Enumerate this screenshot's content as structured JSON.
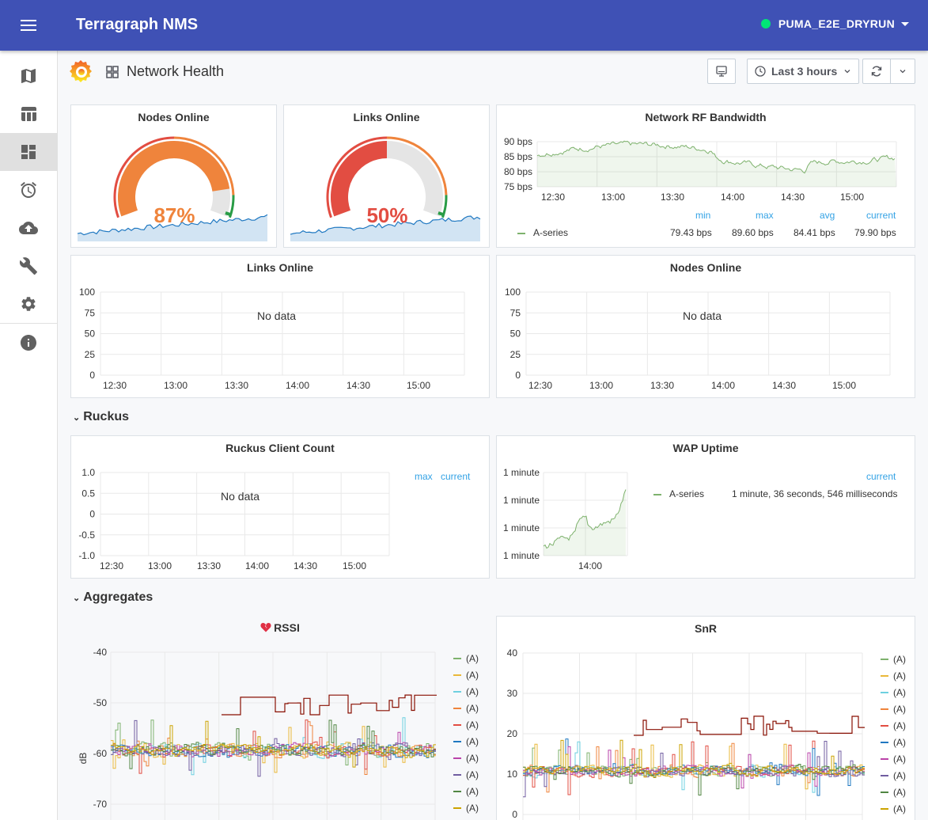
{
  "app": {
    "title": "Terragraph NMS",
    "network_name": "PUMA_E2E_DRYRUN",
    "status_color": "#00e676",
    "accent": "#3f51b5"
  },
  "sidenav": {
    "items": [
      {
        "icon": "map-icon"
      },
      {
        "icon": "table-icon"
      },
      {
        "icon": "dashboard-icon",
        "active": true
      },
      {
        "icon": "alarm-icon"
      },
      {
        "icon": "cloud-upload-icon"
      },
      {
        "icon": "wrench-icon"
      },
      {
        "icon": "gear-icon"
      },
      {
        "icon": "info-icon"
      }
    ]
  },
  "dashboard": {
    "title": "Network Health",
    "time_range": "Last 3 hours"
  },
  "panels": {
    "nodes_online_gauge": {
      "title": "Nodes Online",
      "value": "87%",
      "value_color": "#ef843c",
      "fraction": 0.87
    },
    "links_online_gauge": {
      "title": "Links Online",
      "value": "50%",
      "value_color": "#e24d42",
      "fraction": 0.5
    },
    "rf_bandwidth": {
      "title": "Network RF Bandwidth",
      "y_ticks": [
        "90 bps",
        "85 bps",
        "80 bps",
        "75 bps"
      ],
      "x_ticks": [
        "12:30",
        "13:00",
        "13:30",
        "14:00",
        "14:30",
        "15:00"
      ],
      "legend_headers": [
        "min",
        "max",
        "avg",
        "current"
      ],
      "series": {
        "name": "A-series",
        "min": "79.43 bps",
        "max": "89.60 bps",
        "avg": "84.41 bps",
        "current": "79.90 bps"
      }
    },
    "links_online_graph": {
      "title": "Links Online",
      "no_data": "No data",
      "y_ticks": [
        "100",
        "75",
        "50",
        "25",
        "0"
      ],
      "x_ticks": [
        "12:30",
        "13:00",
        "13:30",
        "14:00",
        "14:30",
        "15:00"
      ]
    },
    "nodes_online_graph": {
      "title": "Nodes Online",
      "no_data": "No data",
      "y_ticks": [
        "100",
        "75",
        "50",
        "25",
        "0"
      ],
      "x_ticks": [
        "12:30",
        "13:00",
        "13:30",
        "14:00",
        "14:30",
        "15:00"
      ]
    },
    "ruckus_client_count": {
      "title": "Ruckus Client Count",
      "no_data": "No data",
      "y_ticks": [
        "1.0",
        "0.5",
        "0",
        "-0.5",
        "-1.0"
      ],
      "x_ticks": [
        "12:30",
        "13:00",
        "13:30",
        "14:00",
        "14:30",
        "15:00"
      ],
      "legend_headers": [
        "max",
        "current"
      ]
    },
    "wap_uptime": {
      "title": "WAP Uptime",
      "y_ticks": [
        "1 minute",
        "1 minute",
        "1 minute",
        "1 minute"
      ],
      "x_ticks": [
        "14:00"
      ],
      "legend_headers": [
        "current"
      ],
      "series": {
        "name": "A-series",
        "current": "1 minute, 36 seconds, 546 milliseconds"
      }
    },
    "rssi": {
      "title": "RSSI",
      "ylabel": "dB",
      "y_ticks": [
        "-40",
        "-50",
        "-60",
        "-70"
      ],
      "legend": [
        "(A)",
        "(A)",
        "(A)",
        "(A)",
        "(A)",
        "(A)",
        "(A)",
        "(A)",
        "(A)",
        "(A)"
      ]
    },
    "snr": {
      "title": "SnR",
      "y_ticks": [
        "40",
        "30",
        "20",
        "10",
        "0"
      ],
      "legend": [
        "(A)",
        "(A)",
        "(A)",
        "(A)",
        "(A)",
        "(A)",
        "(A)",
        "(A)",
        "(A)",
        "(A)"
      ]
    }
  },
  "rows": {
    "ruckus": "Ruckus",
    "aggregates": "Aggregates"
  },
  "series_colors": [
    "#7eb26d",
    "#eab839",
    "#6ed0e0",
    "#ef843c",
    "#e24d42",
    "#1f78c1",
    "#ba43a9",
    "#705da0",
    "#508642",
    "#cca300"
  ]
}
